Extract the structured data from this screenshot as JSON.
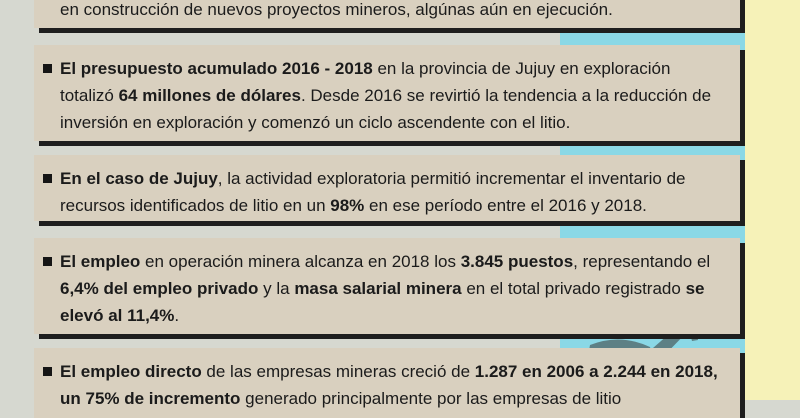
{
  "colors": {
    "card_background": "#d9d0bf",
    "page_background": "#d6d8d0",
    "accent_cyan": "#8ad8e6",
    "accent_yellow": "#f6f2b8",
    "text": "#1b1b1b"
  },
  "icons": {
    "bullet": "square-bullet-icon",
    "illustration": "miner-silhouette-icon"
  },
  "cards": [
    {
      "segments": [
        {
          "text": "en construcción de nuevos proyectos mineros, algúnas aún en ejecución.",
          "bold": false
        }
      ]
    },
    {
      "segments": [
        {
          "text": "El presupuesto acumulado 2016 - 2018",
          "bold": true
        },
        {
          "text": " en la provincia de Jujuy en exploración totalizó ",
          "bold": false
        },
        {
          "text": "64 millones de dólares",
          "bold": true
        },
        {
          "text": ". Desde 2016 se revirtió la tendencia a la reducción de inversión en exploración y comenzó un ciclo ascendente con el litio.",
          "bold": false
        }
      ]
    },
    {
      "segments": [
        {
          "text": "En el caso de Jujuy",
          "bold": true
        },
        {
          "text": ", la actividad exploratoria permitió incrementar el inventario de recursos identificados de litio en un ",
          "bold": false
        },
        {
          "text": "98%",
          "bold": true
        },
        {
          "text": " en ese período entre el 2016 y 2018.",
          "bold": false
        }
      ]
    },
    {
      "segments": [
        {
          "text": "El empleo",
          "bold": true
        },
        {
          "text": " en operación minera alcanza en 2018 los ",
          "bold": false
        },
        {
          "text": "3.845 puestos",
          "bold": true
        },
        {
          "text": ", representando el ",
          "bold": false
        },
        {
          "text": "6,4% del empleo privado",
          "bold": true
        },
        {
          "text": " y la ",
          "bold": false
        },
        {
          "text": "masa salarial minera",
          "bold": true
        },
        {
          "text": " en el total privado registrado ",
          "bold": false
        },
        {
          "text": "se elevó al 11,4%",
          "bold": true
        },
        {
          "text": ".",
          "bold": false
        }
      ]
    },
    {
      "segments": [
        {
          "text": "El empleo directo",
          "bold": true
        },
        {
          "text": " de las empresas mineras creció de ",
          "bold": false
        },
        {
          "text": "1.287 en 2006 a 2.244 en 2018, un 75% de incremento",
          "bold": true
        },
        {
          "text": " generado principalmente por las empresas de litio",
          "bold": false
        }
      ]
    }
  ]
}
